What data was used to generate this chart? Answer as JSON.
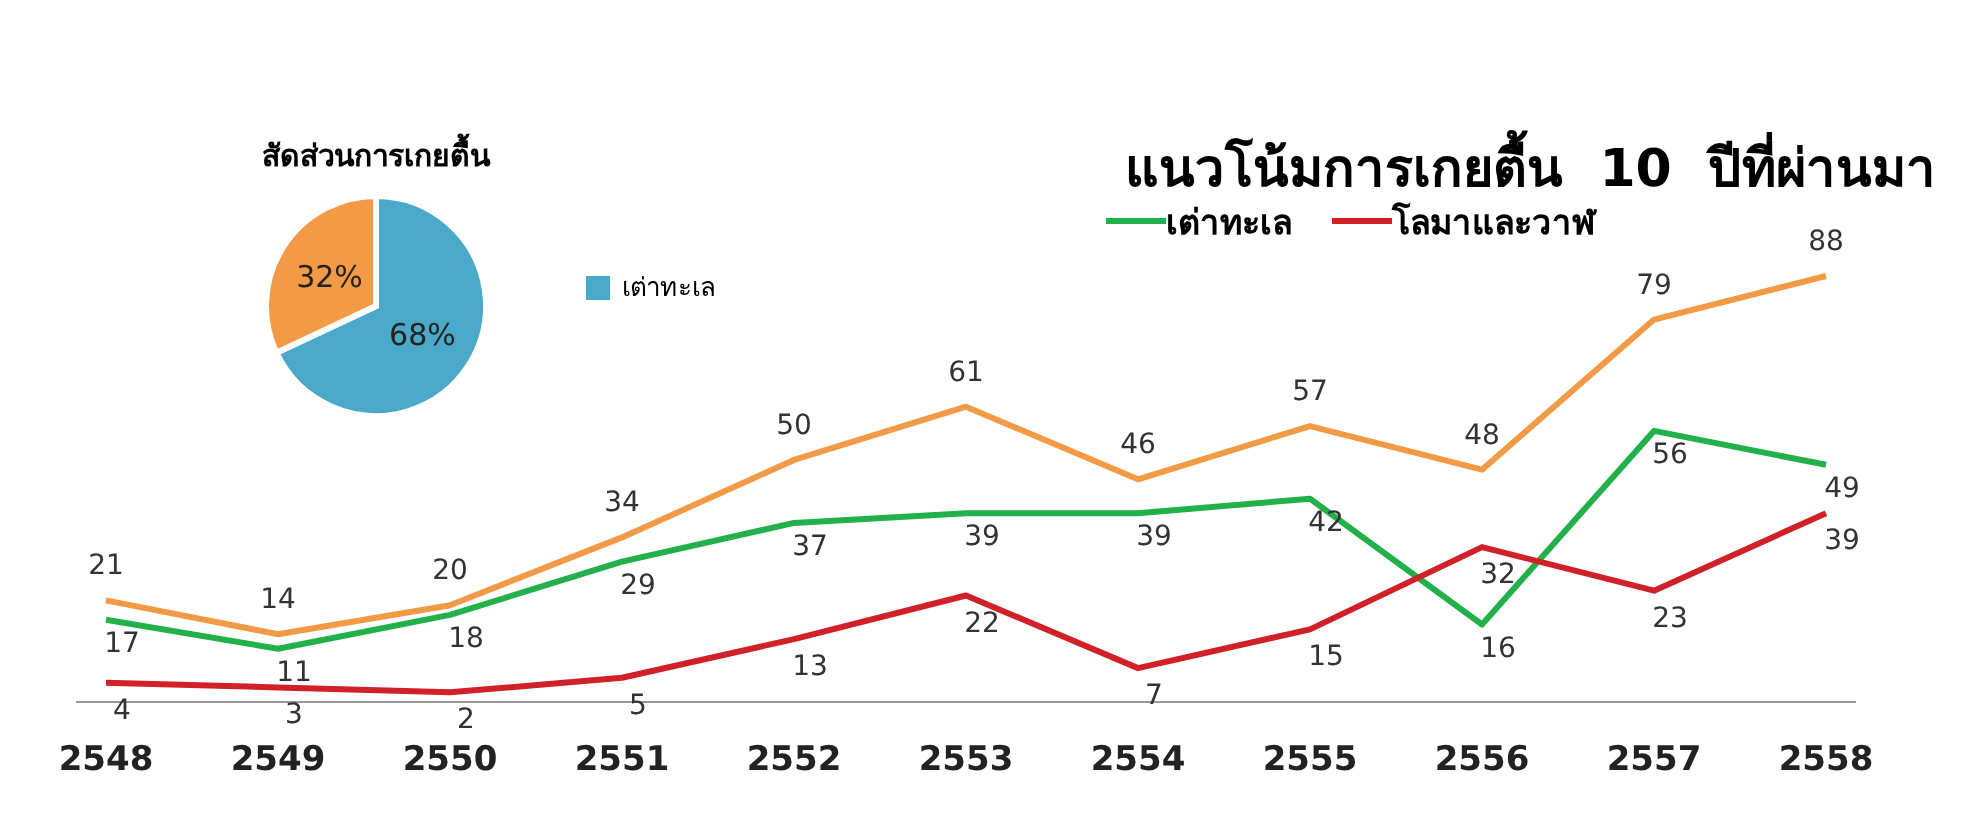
{
  "chart_data": [
    {
      "type": "pie",
      "title": "สัดส่วนการเกยตื้น",
      "categories": [
        "เต่าทะเล",
        null
      ],
      "values": [
        68,
        32
      ],
      "colors": [
        "#4aa8c8",
        "#f29a45"
      ],
      "value_labels": [
        "68%",
        "32%"
      ],
      "legend": "right"
    },
    {
      "type": "line",
      "title": "แนวโน้มการเกยตื้น  10  ปีที่ผ่านมา",
      "categories": [
        "2548",
        "2549",
        "2550",
        "2551",
        "2552",
        "2553",
        "2554",
        "2555",
        "2556",
        "2557",
        "2558"
      ],
      "series": [
        {
          "color": "#f29a45",
          "values": [
            21,
            14,
            20,
            34,
            50,
            61,
            46,
            57,
            48,
            79,
            88
          ]
        },
        {
          "name": "เต่าทะเล",
          "color": "#22b04a",
          "values": [
            17,
            11,
            18,
            29,
            37,
            39,
            39,
            42,
            16,
            56,
            49
          ]
        },
        {
          "name": "โลมาและวาฬ",
          "color": "#d02028",
          "values": [
            4,
            3,
            2,
            5,
            13,
            22,
            7,
            15,
            32,
            23,
            39
          ]
        }
      ],
      "data_labels": true,
      "legend": "top",
      "marker": "none",
      "line_style": "solid"
    }
  ]
}
